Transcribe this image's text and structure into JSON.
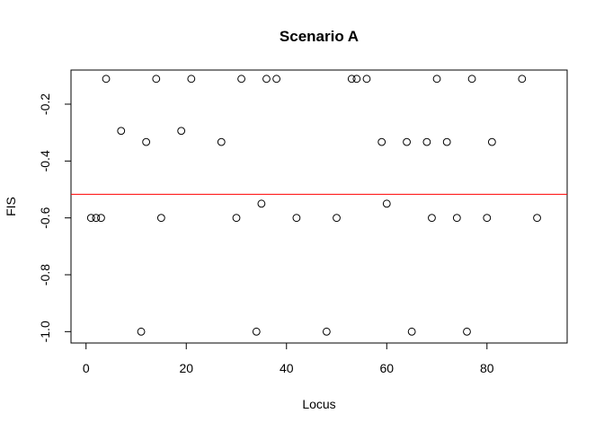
{
  "chart_data": {
    "type": "scatter",
    "title": "Scenario A",
    "xlabel": "Locus",
    "ylabel": "FIS",
    "xlim": [
      -3,
      96
    ],
    "ylim": [
      -1.04,
      -0.08
    ],
    "x_ticks": [
      0,
      20,
      40,
      60,
      80
    ],
    "y_ticks": [
      -1.0,
      -0.8,
      -0.6,
      -0.4,
      -0.2
    ],
    "x_tick_labels": [
      "0",
      "20",
      "40",
      "60",
      "80"
    ],
    "y_tick_labels": [
      "-1.0",
      "-0.8",
      "-0.6",
      "-0.4",
      "-0.2"
    ],
    "grid": false,
    "reference_line": {
      "y": -0.517,
      "color": "#ff0000"
    },
    "point_color": "#000000",
    "points": [
      {
        "x": 1,
        "y": -0.6
      },
      {
        "x": 2,
        "y": -0.6
      },
      {
        "x": 3,
        "y": -0.6
      },
      {
        "x": 4,
        "y": -0.111
      },
      {
        "x": 7,
        "y": -0.294
      },
      {
        "x": 11,
        "y": -1.0
      },
      {
        "x": 12,
        "y": -0.333
      },
      {
        "x": 14,
        "y": -0.111
      },
      {
        "x": 15,
        "y": -0.6
      },
      {
        "x": 19,
        "y": -0.294
      },
      {
        "x": 21,
        "y": -0.111
      },
      {
        "x": 27,
        "y": -0.333
      },
      {
        "x": 30,
        "y": -0.6
      },
      {
        "x": 31,
        "y": -0.111
      },
      {
        "x": 34,
        "y": -1.0
      },
      {
        "x": 35,
        "y": -0.55
      },
      {
        "x": 36,
        "y": -0.111
      },
      {
        "x": 38,
        "y": -0.111
      },
      {
        "x": 42,
        "y": -0.6
      },
      {
        "x": 48,
        "y": -1.0
      },
      {
        "x": 50,
        "y": -0.6
      },
      {
        "x": 53,
        "y": -0.111
      },
      {
        "x": 54,
        "y": -0.111
      },
      {
        "x": 56,
        "y": -0.111
      },
      {
        "x": 59,
        "y": -0.333
      },
      {
        "x": 60,
        "y": -0.55
      },
      {
        "x": 64,
        "y": -0.333
      },
      {
        "x": 65,
        "y": -1.0
      },
      {
        "x": 68,
        "y": -0.333
      },
      {
        "x": 69,
        "y": -0.6
      },
      {
        "x": 70,
        "y": -0.111
      },
      {
        "x": 72,
        "y": -0.333
      },
      {
        "x": 74,
        "y": -0.6
      },
      {
        "x": 76,
        "y": -1.0
      },
      {
        "x": 77,
        "y": -0.111
      },
      {
        "x": 80,
        "y": -0.6
      },
      {
        "x": 81,
        "y": -0.333
      },
      {
        "x": 87,
        "y": -0.111
      },
      {
        "x": 90,
        "y": -0.6
      }
    ]
  }
}
